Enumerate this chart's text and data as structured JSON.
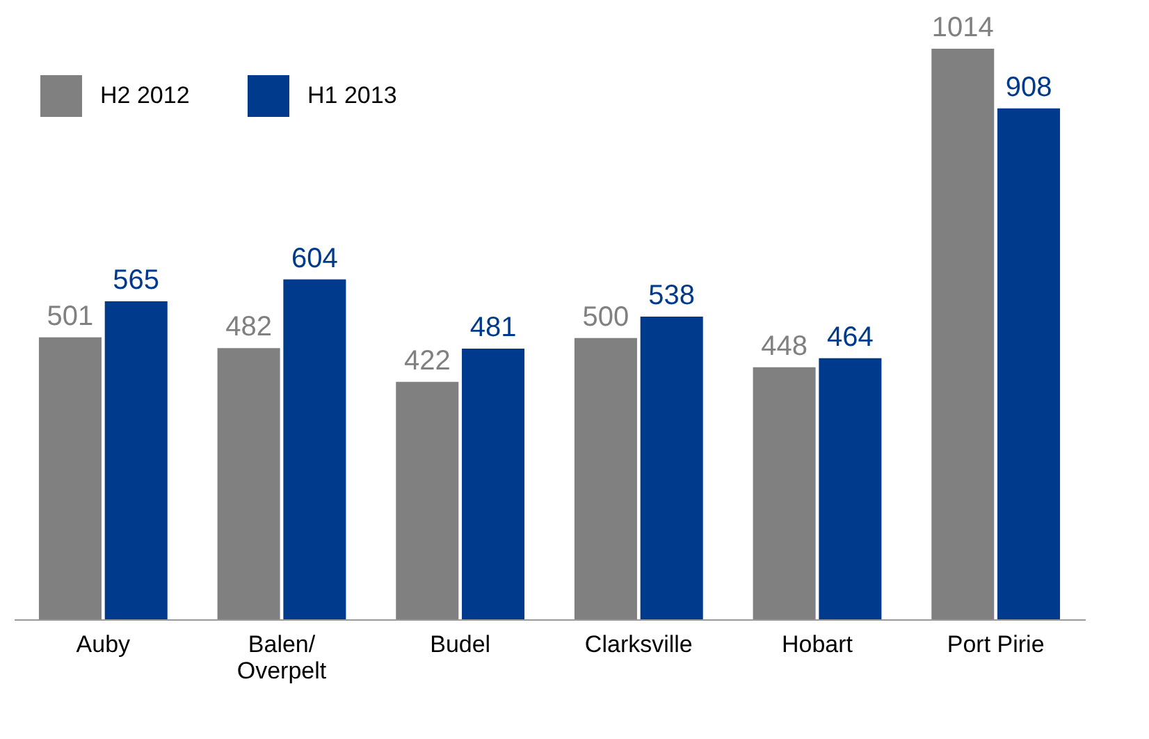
{
  "chart_data": {
    "type": "bar",
    "categories": [
      "Auby",
      "Balen/\nOverpelt",
      "Budel",
      "Clarksville",
      "Hobart",
      "Port Pirie"
    ],
    "series": [
      {
        "name": "H2 2012",
        "color": "#808080",
        "values": [
          501,
          482,
          422,
          500,
          448,
          1014
        ]
      },
      {
        "name": "H1 2013",
        "color": "#003a8c",
        "values": [
          565,
          604,
          481,
          538,
          464,
          908
        ]
      }
    ],
    "data_labels": true,
    "legend": "top left"
  }
}
